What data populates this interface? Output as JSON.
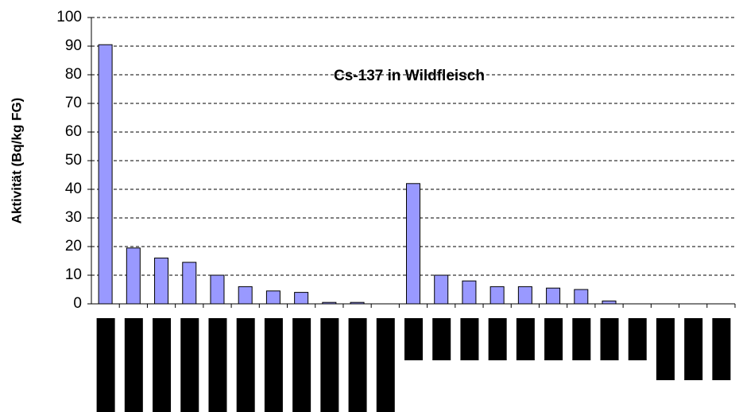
{
  "chart_data": {
    "type": "bar",
    "title": "Cs-137 in Wildfleisch",
    "y_label": "Aktivität (Bq/kg FG)",
    "categories": [
      null,
      null,
      null,
      null,
      null,
      null,
      null,
      null,
      null,
      null,
      null,
      null,
      null,
      null,
      null,
      null,
      null,
      null,
      null,
      null,
      null,
      null,
      null
    ],
    "values": [
      90.5,
      19.5,
      16,
      14.5,
      10,
      6,
      4.5,
      4,
      0.5,
      0.5,
      0,
      42,
      10,
      8,
      6,
      6,
      5.5,
      5,
      1,
      0,
      0,
      0,
      0
    ],
    "color": "#9999ff",
    "ylim": [
      0,
      100
    ],
    "yticks": [
      0,
      10,
      20,
      30,
      40,
      50,
      60,
      70,
      80,
      90,
      100
    ],
    "grid": true
  }
}
